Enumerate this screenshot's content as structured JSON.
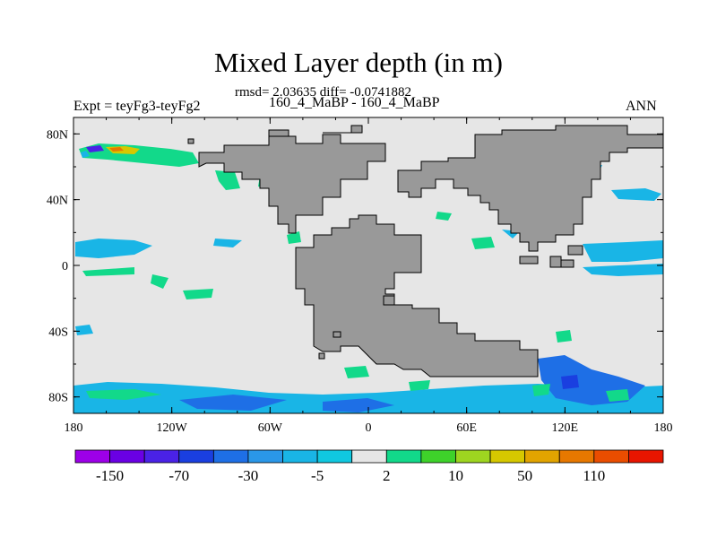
{
  "title": "Mixed Layer depth (in m)",
  "stats_line": "rmsd= 2.03635 diff= -0.0741882",
  "case_line": "160_4_MaBP - 160_4_MaBP",
  "left_label": "Expt = teyFg3-teyFg2",
  "right_label": "ANN",
  "chart_data": {
    "type": "heatmap",
    "title": "Mixed Layer depth (in m)",
    "x_ticks": [
      "180",
      "120W",
      "60W",
      "0",
      "60E",
      "120E",
      "180"
    ],
    "y_ticks": [
      "80N",
      "40N",
      "0",
      "40S",
      "80S"
    ],
    "xlim": [
      -180,
      180
    ],
    "ylim": [
      -90,
      90
    ],
    "colorbar": {
      "labels": [
        "-150",
        "-70",
        "-30",
        "-5",
        "2",
        "10",
        "50",
        "110"
      ],
      "colors": [
        "#9d00e8",
        "#6a00e4",
        "#4a22e6",
        "#1a3fe0",
        "#1e6fe6",
        "#2a97e8",
        "#19b5e6",
        "#10c8e0",
        "#e6e6e6",
        "#12d98a",
        "#3ed22a",
        "#9ed520",
        "#d6c800",
        "#e2a400",
        "#e77800",
        "#ea4d00",
        "#e81500"
      ]
    },
    "land_color": "#999999",
    "ocean_color": "#e6e6e6"
  }
}
